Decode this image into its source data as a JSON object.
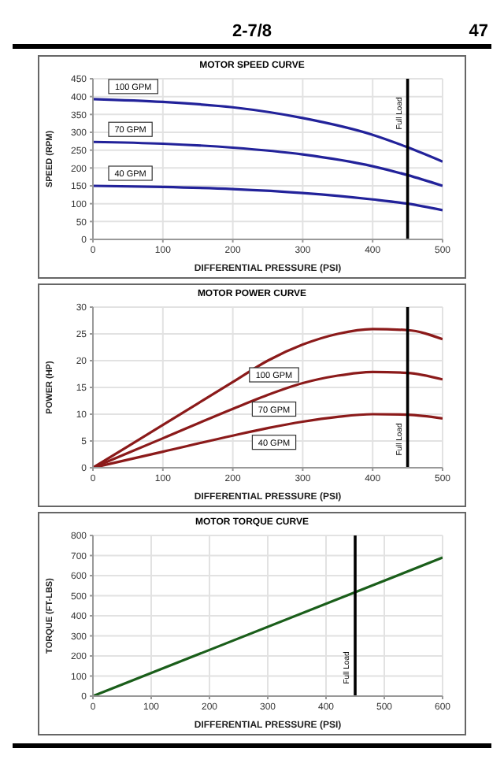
{
  "chart_data": [
    {
      "type": "line",
      "title": "MOTOR SPEED CURVE",
      "xlabel": "DIFFERENTIAL PRESSURE (PSI)",
      "ylabel": "SPEED (RPM)",
      "annotations": [
        "2-7/8",
        "47"
      ],
      "x": [
        0,
        100,
        200,
        300,
        400,
        450,
        500
      ],
      "xlim": [
        0,
        500
      ],
      "xticks": [
        0,
        100,
        200,
        300,
        400,
        500
      ],
      "ylim": [
        0,
        450
      ],
      "yticks": [
        0,
        50,
        100,
        150,
        200,
        250,
        300,
        350,
        400,
        450
      ],
      "grid": true,
      "legend": false,
      "marker": "none",
      "line_style": "solid",
      "series": [
        {
          "name": "100 GPM",
          "color": "#22229a",
          "values": [
            393,
            385,
            370,
            340,
            293,
            258,
            218
          ]
        },
        {
          "name": "70 GPM",
          "color": "#22229a",
          "values": [
            273,
            268,
            257,
            238,
            205,
            180,
            150
          ]
        },
        {
          "name": "40 GPM",
          "color": "#22229a",
          "values": [
            150,
            147,
            141,
            130,
            112,
            100,
            82
          ]
        }
      ],
      "ref_lines": [
        {
          "axis": "x",
          "value": 450,
          "label": "Full Load",
          "color": "#000000"
        }
      ]
    },
    {
      "type": "line",
      "title": "MOTOR POWER CURVE",
      "xlabel": "DIFFERENTIAL PRESSURE (PSI)",
      "ylabel": "POWER (HP)",
      "x": [
        0,
        100,
        200,
        250,
        300,
        350,
        400,
        450,
        500
      ],
      "xlim": [
        0,
        500
      ],
      "xticks": [
        0,
        100,
        200,
        300,
        400,
        500
      ],
      "ylim": [
        0,
        30
      ],
      "yticks": [
        0,
        5,
        10,
        15,
        20,
        25,
        30
      ],
      "grid": true,
      "legend": false,
      "marker": "none",
      "line_style": "solid",
      "series": [
        {
          "name": "100 GPM",
          "color": "#8b1a1a",
          "values": [
            0,
            8,
            16,
            20,
            23,
            25,
            25.9,
            25.7,
            24
          ]
        },
        {
          "name": "70 GPM",
          "color": "#8b1a1a",
          "values": [
            0,
            5.5,
            11,
            13.6,
            15.8,
            17.2,
            17.9,
            17.7,
            16.5
          ]
        },
        {
          "name": "40 GPM",
          "color": "#8b1a1a",
          "values": [
            0,
            3,
            6,
            7.4,
            8.6,
            9.5,
            10,
            9.9,
            9.2
          ]
        }
      ],
      "ref_lines": [
        {
          "axis": "x",
          "value": 450,
          "label": "Full Load",
          "color": "#000000"
        }
      ]
    },
    {
      "type": "line",
      "title": "MOTOR TORQUE CURVE",
      "xlabel": "DIFFERENTIAL PRESSURE (PSI)",
      "ylabel": "TORQUE (FT-LBS)",
      "x": [
        0,
        600
      ],
      "xlim": [
        0,
        600
      ],
      "xticks": [
        0,
        100,
        200,
        300,
        400,
        500,
        600
      ],
      "ylim": [
        0,
        800
      ],
      "yticks": [
        0,
        100,
        200,
        300,
        400,
        500,
        600,
        700,
        800
      ],
      "grid": true,
      "legend": false,
      "marker": "none",
      "line_style": "solid",
      "series": [
        {
          "color": "#1a5e1a",
          "values": [
            0,
            690
          ]
        }
      ],
      "ref_lines": [
        {
          "axis": "x",
          "value": 450,
          "label": "Full Load",
          "color": "#000000"
        }
      ]
    }
  ]
}
